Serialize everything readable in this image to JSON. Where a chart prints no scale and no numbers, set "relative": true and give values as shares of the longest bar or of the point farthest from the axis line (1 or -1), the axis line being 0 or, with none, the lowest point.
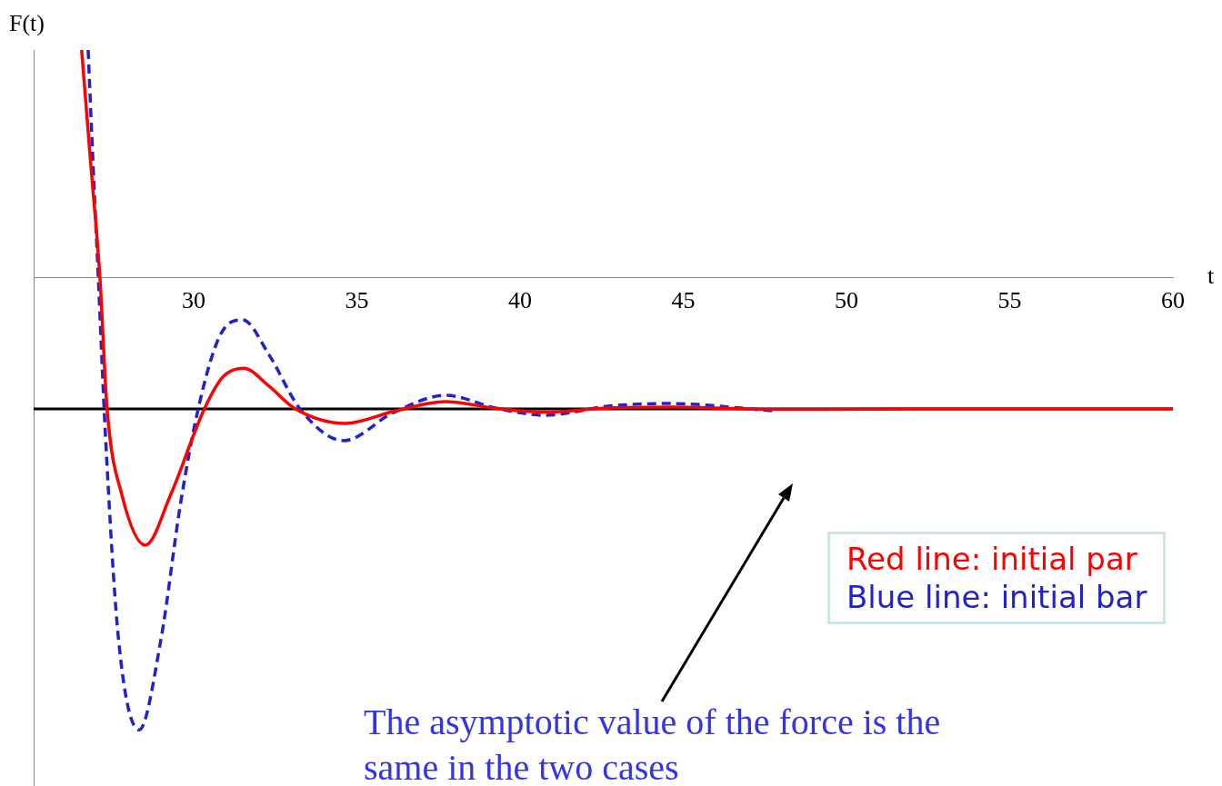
{
  "chart_data": {
    "type": "line",
    "ylabel": "F(t)",
    "xlabel": "t",
    "relative": true,
    "xlim": [
      25.1,
      60
    ],
    "xticks": [
      30,
      35,
      40,
      45,
      50,
      55,
      60
    ],
    "grid": false,
    "legend": "bottom right",
    "marker": "none",
    "series": [
      {
        "name": "Red line: initial par",
        "color": "#ff0000",
        "line_style": "solid",
        "x": [
          26.57,
          26.85,
          27.13,
          27.35,
          27.8,
          28.52,
          29.3,
          30.33,
          30.9,
          31.53,
          32.3,
          33.12,
          34.65,
          36.2,
          37.72,
          39.3,
          40.78,
          42.7,
          44.68,
          47.7,
          52,
          60
        ],
        "values": [
          0.502,
          0.25,
          0,
          -0.291,
          -0.48,
          -0.592,
          -0.48,
          -0.291,
          -0.22,
          -0.201,
          -0.24,
          -0.291,
          -0.323,
          -0.295,
          -0.275,
          -0.29,
          -0.298,
          -0.289,
          -0.287,
          -0.292,
          -0.291,
          -0.291
        ]
      },
      {
        "name": "Blue line: initial bar",
        "color": "#2222cc",
        "line_style": "dashed",
        "x": [
          26.77,
          26.92,
          27.08,
          27.3,
          27.7,
          28.33,
          29.0,
          29.6,
          30.14,
          30.8,
          31.5,
          32.3,
          33.26,
          34.6,
          36.1,
          37.72,
          39.3,
          40.78,
          42.7,
          44.54,
          47.74
        ],
        "values": [
          0.502,
          0.25,
          0,
          -0.35,
          -0.8,
          -1,
          -0.8,
          -0.5,
          -0.291,
          -0.13,
          -0.094,
          -0.17,
          -0.291,
          -0.361,
          -0.3,
          -0.261,
          -0.29,
          -0.305,
          -0.285,
          -0.279,
          -0.295
        ]
      }
    ],
    "ref_lines": [
      {
        "axis": "y",
        "value": -0.291,
        "color": "#000000"
      }
    ],
    "annotations": [
      "The asymptotic value of the force is the same in the two cases"
    ]
  }
}
